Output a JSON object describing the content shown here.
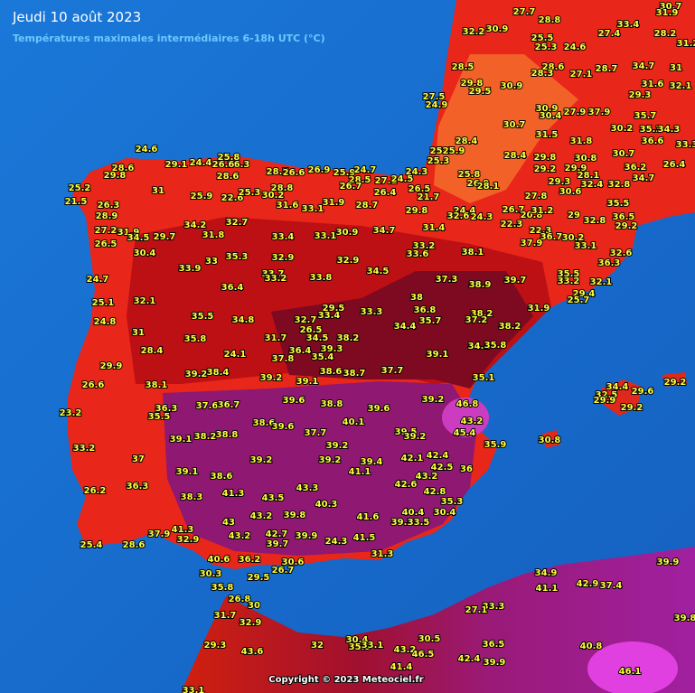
{
  "header": {
    "title": "Jeudi 10 août 2023",
    "subtitle": "Températures maximales intermédiaires 6-18h UTC (°C)"
  },
  "stations": [
    32.2,
    30.9,
    27.7,
    28.8,
    25.5,
    25.3,
    24.6,
    27.4,
    33.4,
    30.7,
    31.9,
    28.2,
    31.2,
    28.5,
    29.8,
    29.5,
    30.9,
    28.6,
    28.3,
    27.1,
    28.7,
    34.7,
    31,
    31.6,
    32.1,
    29.3,
    27.5,
    24.9,
    30.9,
    30.4,
    27.9,
    37.9,
    35.7,
    30.7,
    30.2,
    35.3,
    34.3,
    31.8,
    28.4,
    31.5,
    36.6,
    33.3,
    25.4,
    25.9,
    25.3,
    28.4,
    29.8,
    30.7,
    30.8,
    29.2,
    29.9,
    28.1,
    26.4,
    36.2,
    25.8,
    26.9,
    28.1,
    27.8,
    30.6,
    29.3,
    32.4,
    32.8,
    34.7,
    35.5,
    24.6,
    25.8,
    26.3,
    28.6,
    29.8,
    29.1,
    24.4,
    26.6,
    28.7,
    26.6,
    26.9,
    25.9,
    24.7,
    25.2,
    21.5,
    26.3,
    31,
    25.9,
    28.6,
    22.6,
    25.3,
    28.8,
    30.2,
    28.5,
    26.7,
    27.1,
    24.5,
    24.3,
    26.4,
    26.5,
    21.7,
    31.6,
    33.1,
    31.9,
    28.7,
    29.8,
    24.4,
    32.6,
    24.3,
    26.7,
    20.8,
    31.2,
    29,
    32.8,
    36.5,
    28.9,
    27.2,
    31.9,
    34.5,
    29.7,
    26.5,
    34.2,
    32.7,
    31.8,
    33.4,
    33.1,
    30.9,
    34.7,
    31.4,
    22.3,
    22.3,
    36.7,
    30.2,
    29.2,
    37.9,
    33.1,
    33.2,
    33.6,
    38.1,
    30.4,
    32.6,
    36.3,
    33.9,
    33,
    35.3,
    32.9,
    32.9,
    34.5,
    33.7,
    33.2,
    33.8,
    37.3,
    38.9,
    39.7,
    35.5,
    33.2,
    32.1,
    24.7,
    36.4,
    29.4,
    25.7,
    32.1,
    25.1,
    38,
    29.5,
    33.4,
    33.3,
    36.8,
    38.2,
    37.2,
    35.7,
    31.9,
    35.5,
    34.8,
    32.7,
    24.8,
    34.4,
    38.2,
    31,
    26.5,
    34.5,
    38.2,
    35.8,
    31.7,
    34.1,
    35.8,
    28.4,
    24.1,
    36.4,
    39.3,
    37.8,
    35.4,
    39.1,
    29.9,
    39.2,
    38.4,
    39.2,
    39.1,
    38.6,
    38.7,
    37.7,
    35.1,
    26.6,
    38.1,
    37.6,
    36.7,
    39.6,
    38.8,
    39.6,
    39.2,
    46.8,
    34.4,
    32.5,
    29.6,
    29.2,
    29.9,
    29.2,
    23.2,
    36.3,
    35.5,
    38.6,
    39.6,
    37.7,
    40.1,
    39.5,
    39.2,
    43.2,
    45.4,
    39.1,
    38.2,
    38.8,
    39.2,
    35.9,
    30.8,
    33.2,
    37,
    39.2,
    39.2,
    39.4,
    42.1,
    42.4,
    42.5,
    36,
    39.1,
    38.6,
    41.1,
    43.2,
    43.3,
    42.6,
    42.8,
    36.3,
    26.2,
    41.3,
    38.3,
    43.5,
    40.3,
    35.3,
    43.2,
    39.8,
    41.6,
    40.4,
    30.4,
    43,
    39.3,
    33.5,
    37.9,
    41.3,
    32.9,
    43.2,
    42.7,
    39.7,
    39.9,
    24.3,
    41.5,
    25.4,
    28.6,
    40.6,
    36.2,
    31.3,
    30.6,
    26.7,
    30.3,
    29.5,
    34.9,
    41.1,
    42.9,
    37.4,
    39.9,
    35.8,
    26.8,
    30,
    33.3,
    27.1,
    31.7,
    32.9,
    39.8,
    30.4,
    35.9,
    33.1,
    30.5,
    36.5,
    40.8,
    29.3,
    43.6,
    32,
    43.2,
    46.5,
    42.4,
    39.9,
    41.4,
    46.1,
    33.1
  ],
  "copyright": "Copyright © 2023 Meteociel.fr"
}
